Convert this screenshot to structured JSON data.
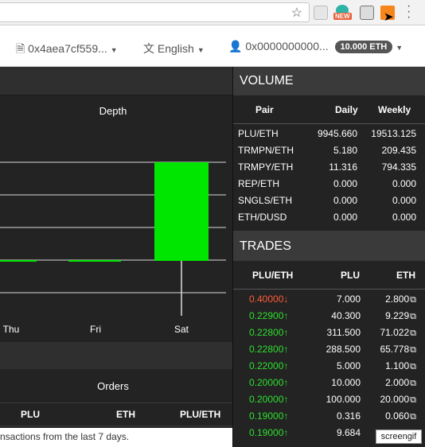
{
  "browser": {
    "star_icon": "star-icon",
    "ext_new_label": "NEW",
    "menu_icon": "kebab-menu-icon"
  },
  "nav": {
    "account": "0x4aea7cf559...",
    "language": "English",
    "wallet": "0x0000000000...",
    "eth_balance": "10.000 ETH"
  },
  "chart": {
    "title": "Depth"
  },
  "chart_data": {
    "type": "bar",
    "title": "Depth",
    "categories": [
      "Thu",
      "Fri",
      "Sat"
    ],
    "series": [
      {
        "values": [
          0,
          0,
          1
        ]
      }
    ]
  },
  "orders": {
    "title": "Orders",
    "columns": [
      "PLU",
      "ETH",
      "PLU/ETH"
    ],
    "note": "nsactions from the last 7 days."
  },
  "volume": {
    "title": "VOLUME",
    "columns": [
      "Pair",
      "Daily",
      "Weekly"
    ],
    "rows": [
      {
        "pair": "PLU/ETH",
        "daily": "9945.660",
        "weekly": "19513.125"
      },
      {
        "pair": "TRMPN/ETH",
        "daily": "5.180",
        "weekly": "209.435"
      },
      {
        "pair": "TRMPY/ETH",
        "daily": "11.316",
        "weekly": "794.335"
      },
      {
        "pair": "REP/ETH",
        "daily": "0.000",
        "weekly": "0.000"
      },
      {
        "pair": "SNGLS/ETH",
        "daily": "0.000",
        "weekly": "0.000"
      },
      {
        "pair": "ETH/DUSD",
        "daily": "0.000",
        "weekly": "0.000"
      }
    ]
  },
  "trades": {
    "title": "TRADES",
    "columns": [
      "PLU/ETH",
      "PLU",
      "ETH"
    ],
    "rows": [
      {
        "price": "0.40000",
        "dir": "down",
        "plu": "7.000",
        "eth": "2.800"
      },
      {
        "price": "0.22900",
        "dir": "up",
        "plu": "40.300",
        "eth": "9.229"
      },
      {
        "price": "0.22800",
        "dir": "up",
        "plu": "311.500",
        "eth": "71.022"
      },
      {
        "price": "0.22800",
        "dir": "up",
        "plu": "288.500",
        "eth": "65.778"
      },
      {
        "price": "0.22000",
        "dir": "up",
        "plu": "5.000",
        "eth": "1.100"
      },
      {
        "price": "0.20000",
        "dir": "up",
        "plu": "10.000",
        "eth": "2.000"
      },
      {
        "price": "0.20000",
        "dir": "up",
        "plu": "100.000",
        "eth": "20.000"
      },
      {
        "price": "0.19000",
        "dir": "up",
        "plu": "0.316",
        "eth": "0.060"
      },
      {
        "price": "0.19000",
        "dir": "up",
        "plu": "9.684",
        "eth": ""
      }
    ]
  },
  "watermark": "screengif",
  "colors": {
    "up": "#2ee02e",
    "down": "#ff5b35",
    "bar": "#00e600",
    "panel": "#232323"
  }
}
